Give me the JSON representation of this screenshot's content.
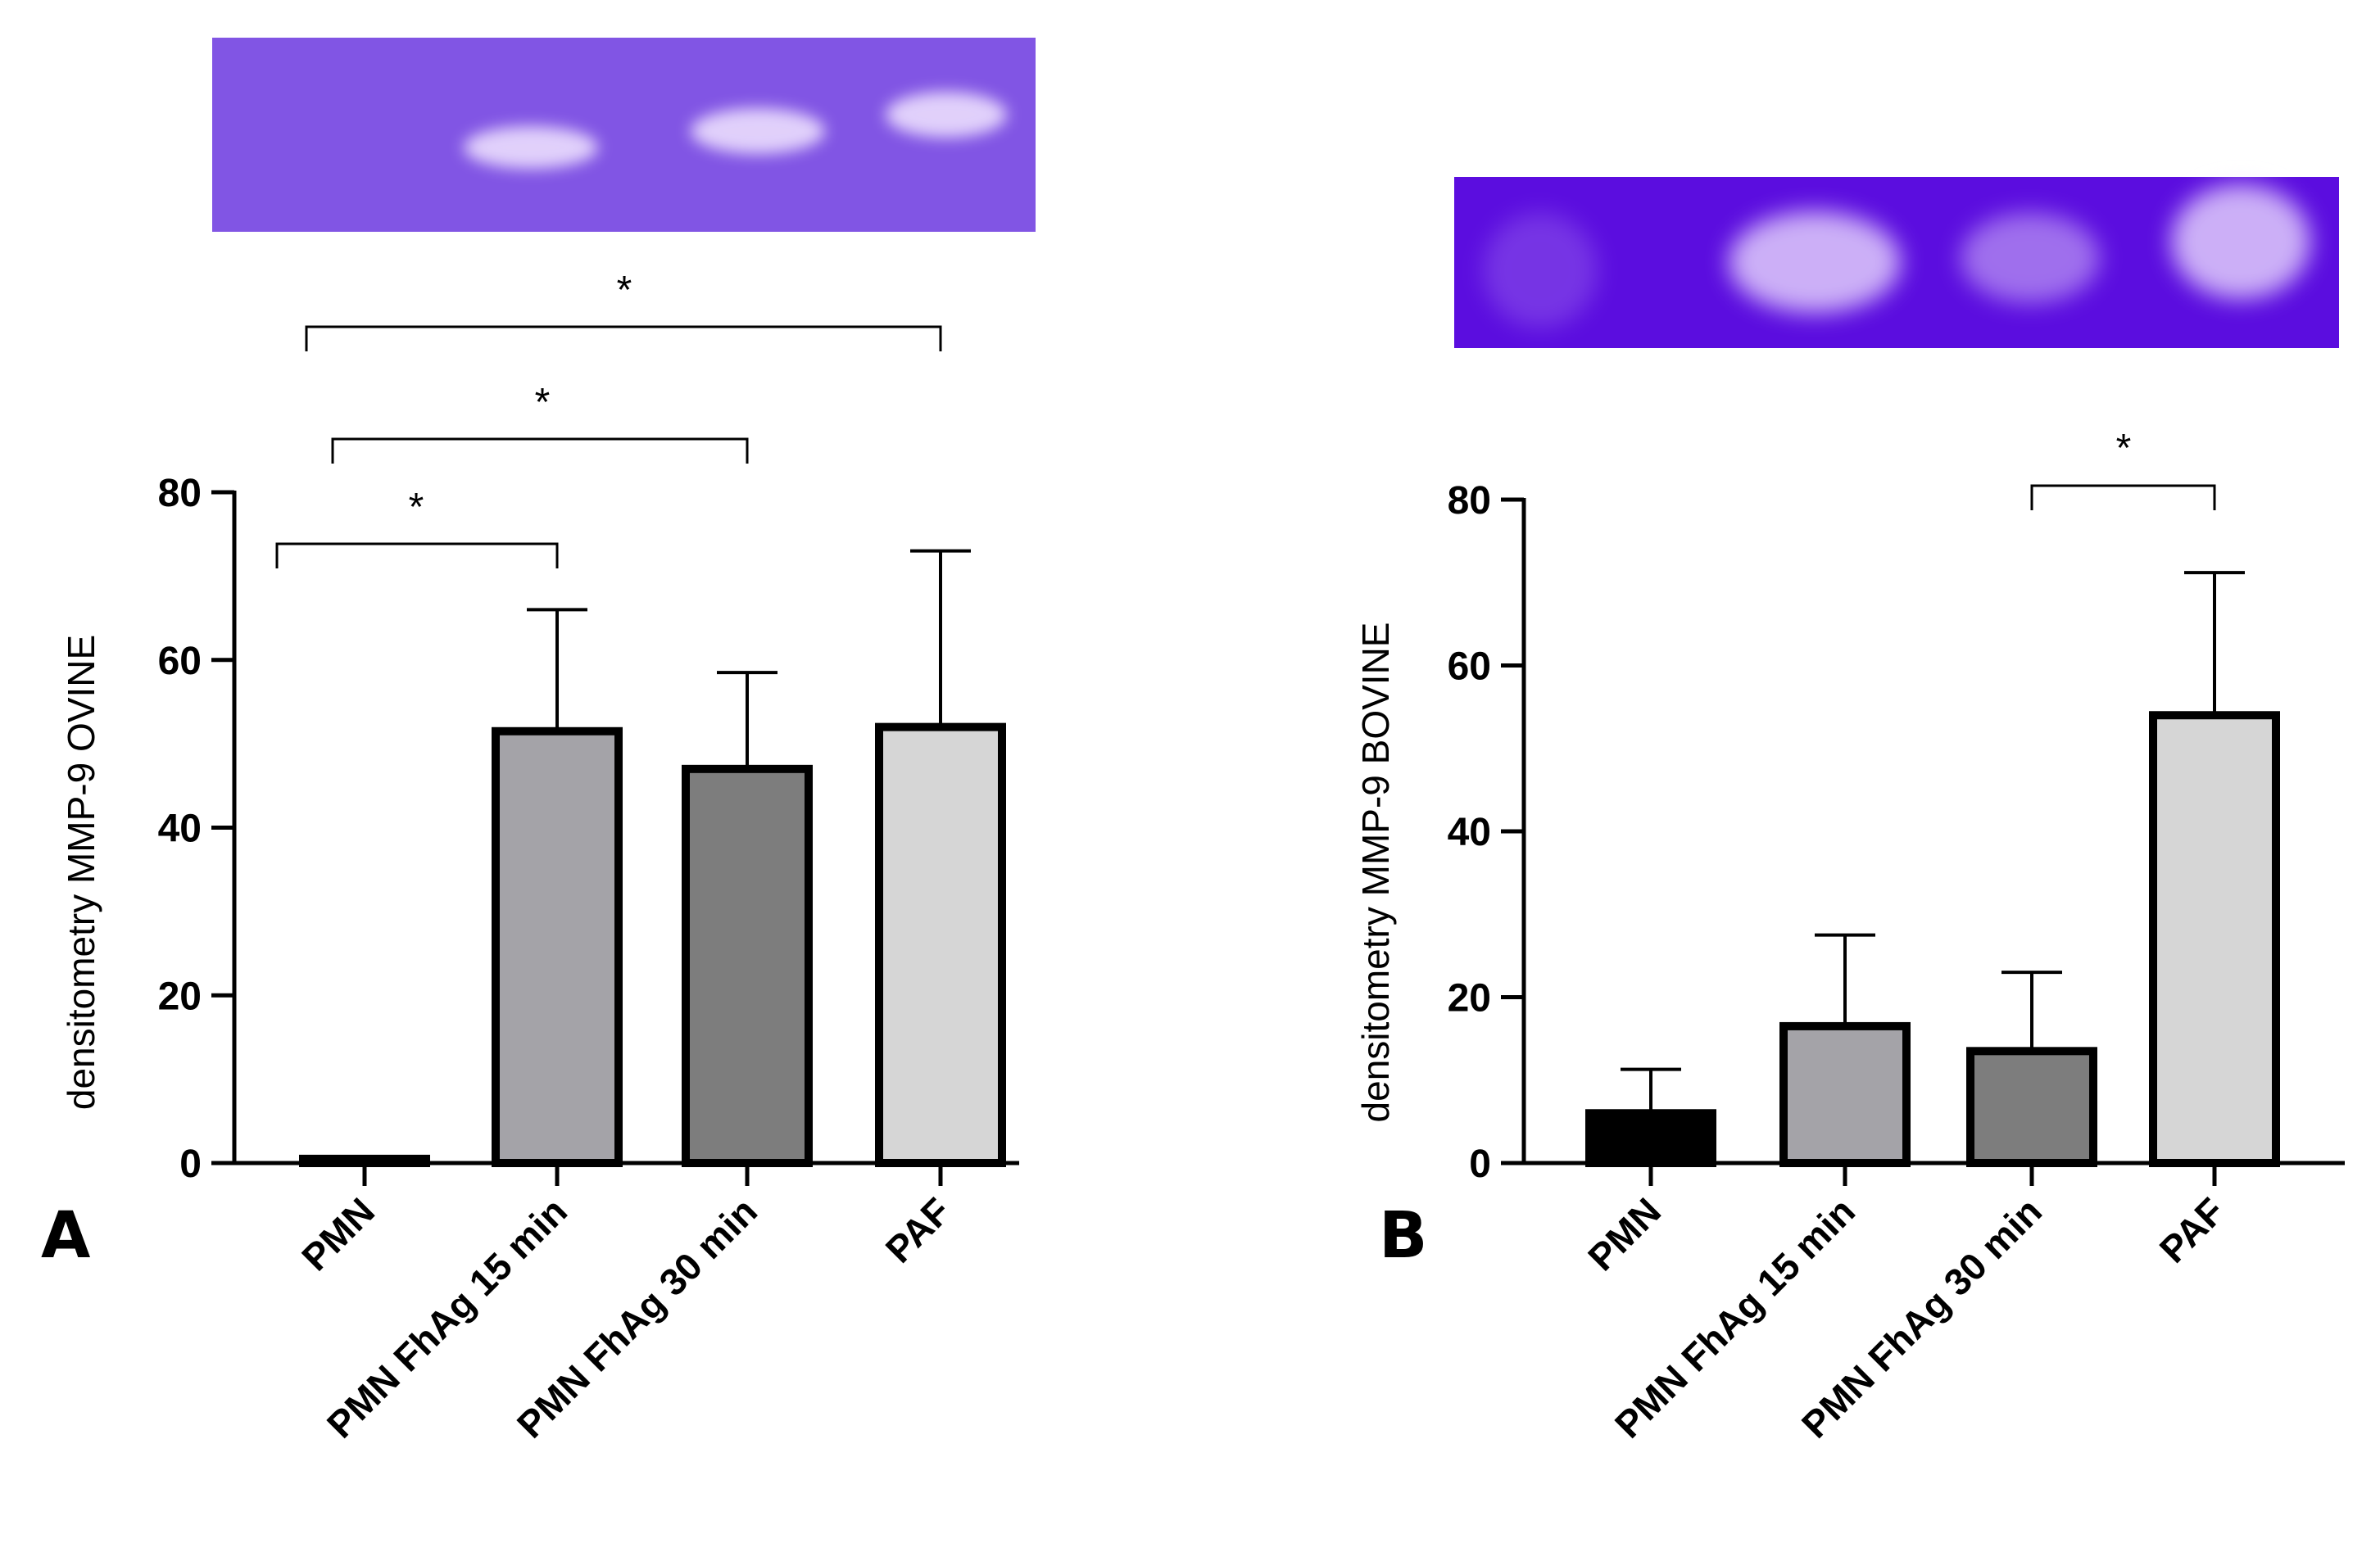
{
  "chart_data": [
    {
      "type": "bar",
      "panel": "A",
      "categories": [
        "PMN",
        "PMN FhAg 15 min",
        "PMN FhAg 30 min",
        "PAF"
      ],
      "values": [
        0.5,
        51.5,
        47,
        52
      ],
      "errors": [
        0,
        14.5,
        11.5,
        21
      ],
      "bar_colors": [
        "#000000",
        "#a4a3a8",
        "#7d7d7d",
        "#d6d6d6"
      ],
      "ylabel": "densitometry MMP-9 OVINE",
      "ylim": [
        0,
        80
      ],
      "yticks": [
        0,
        20,
        40,
        60,
        80
      ],
      "significance": [
        {
          "from": 0,
          "to": 1,
          "label": "*"
        },
        {
          "from": 0,
          "to": 2,
          "label": "*"
        },
        {
          "from": 0,
          "to": 3,
          "label": "*"
        }
      ],
      "gel_color": "#8155e4"
    },
    {
      "type": "bar",
      "panel": "B",
      "categories": [
        "PMN",
        "PMN FhAg 15 min",
        "PMN FhAg 30 min",
        "PAF"
      ],
      "values": [
        6,
        16.5,
        13.5,
        54
      ],
      "errors": [
        5.3,
        11,
        9.5,
        17.2
      ],
      "bar_colors": [
        "#000000",
        "#a4a3a8",
        "#7d7d7d",
        "#d6d6d6"
      ],
      "ylabel": "densitometry MMP-9 BOVINE",
      "ylim": [
        0,
        80
      ],
      "yticks": [
        0,
        20,
        40,
        60,
        80
      ],
      "significance": [
        {
          "from": 2,
          "to": 3,
          "label": "*"
        }
      ],
      "gel_color": "#5b0ddf"
    }
  ]
}
